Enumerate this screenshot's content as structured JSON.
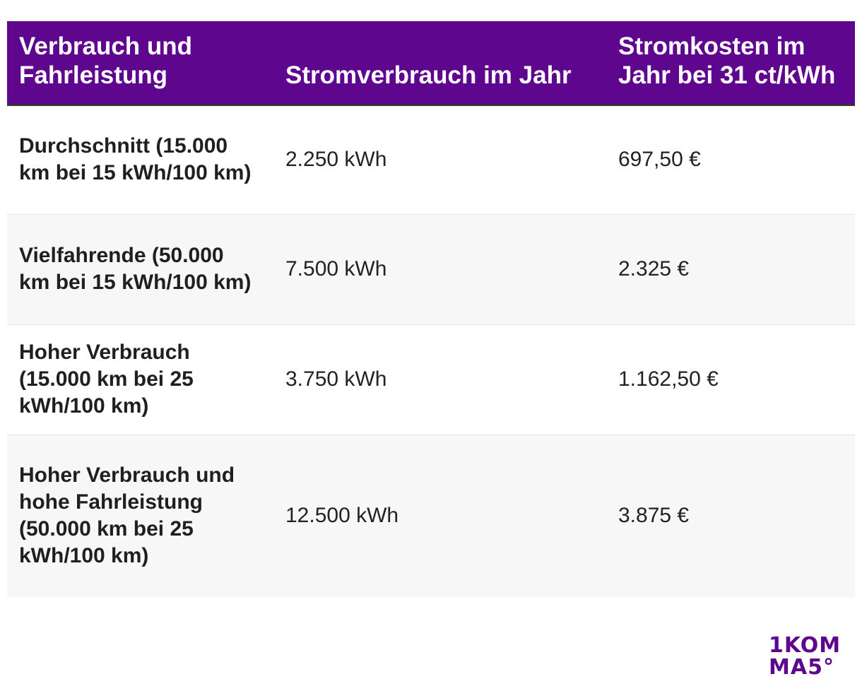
{
  "table": {
    "headers": [
      "Verbrauch und Fahrleistung",
      "Stromverbrauch im Jahr",
      "Stromkosten im Jahr bei 31 ct/kWh"
    ],
    "rows": [
      {
        "label": "Durchschnitt (15.000 km bei 15 kWh/100 km)",
        "consumption": "2.250 kWh",
        "cost": "697,50 €"
      },
      {
        "label": "Vielfahrende (50.000 km bei 15 kWh/100 km)",
        "consumption": "7.500 kWh",
        "cost": "2.325 €"
      },
      {
        "label": "Hoher Verbrauch (15.000 km bei 25 kWh/100 km)",
        "consumption": "3.750 kWh",
        "cost": "1.162,50 €"
      },
      {
        "label": "Hoher Verbrauch und hohe Fahrleistung (50.000 km bei 25 kWh/100 km)",
        "consumption": "12.500 kWh",
        "cost": "3.875 €"
      }
    ]
  },
  "logo": {
    "line1": "1KOM",
    "line2": "MA5°"
  },
  "colors": {
    "header_background": "#5f068f",
    "header_text": "#ffffff",
    "row_alt_background": "#f7f7f7",
    "logo": "#5f068f"
  }
}
